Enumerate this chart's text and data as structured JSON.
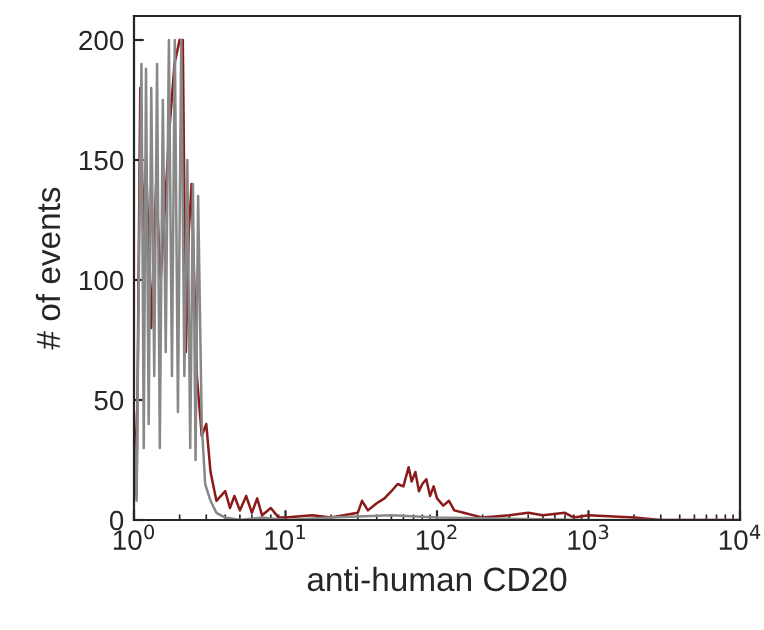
{
  "chart_data": {
    "type": "line",
    "xlabel": "anti-human CD20",
    "ylabel": "# of events",
    "log": "x",
    "xlim": [
      1,
      10000
    ],
    "ylim": [
      0,
      210
    ],
    "xticks": [
      {
        "value": 1,
        "label": "10$^{0}$"
      },
      {
        "value": 10,
        "label": "10$^{1}$"
      },
      {
        "value": 100,
        "label": "10$^{2}$"
      },
      {
        "value": 1000,
        "label": "10$^{3}$"
      },
      {
        "value": 10000,
        "label": "10$^{4}$"
      }
    ],
    "yticks": [
      0,
      50,
      100,
      150,
      200
    ],
    "grid": false,
    "legend": false,
    "marker": "none",
    "line_style": "solid",
    "series": [
      {
        "color": "#8b1a1a",
        "x": [
          1.0,
          1.04,
          1.1,
          1.15,
          1.2,
          1.3,
          1.4,
          1.5,
          1.6,
          1.7,
          1.85,
          2.0,
          2.1,
          2.2,
          2.3,
          2.4,
          2.6,
          2.8,
          3.0,
          3.2,
          3.5,
          4,
          4.3,
          4.6,
          5,
          5.5,
          6,
          6.5,
          7,
          8,
          9,
          10,
          15,
          20,
          30,
          32,
          35,
          40,
          45,
          50,
          55,
          60,
          65,
          68,
          72,
          76,
          80,
          85,
          90,
          95,
          100,
          110,
          120,
          130,
          150,
          200,
          300,
          400,
          500,
          700,
          800,
          1000,
          2000,
          3000,
          10000
        ],
        "values": [
          45,
          10,
          180,
          120,
          150,
          80,
          140,
          100,
          130,
          160,
          190,
          200,
          200,
          70,
          120,
          140,
          60,
          35,
          40,
          20,
          8,
          12,
          5,
          10,
          4,
          10,
          3,
          9,
          2,
          5,
          1,
          1,
          2,
          1,
          3,
          8,
          4,
          7,
          9,
          12,
          15,
          14,
          22,
          16,
          20,
          12,
          15,
          17,
          10,
          14,
          9,
          6,
          8,
          4,
          3,
          1,
          2,
          3,
          2,
          3,
          1,
          2,
          1,
          0,
          0
        ]
      },
      {
        "color": "#888888",
        "x": [
          1.0,
          1.04,
          1.08,
          1.12,
          1.16,
          1.2,
          1.25,
          1.3,
          1.36,
          1.42,
          1.48,
          1.55,
          1.62,
          1.7,
          1.78,
          1.86,
          1.95,
          2.05,
          2.15,
          2.25,
          2.35,
          2.45,
          2.55,
          2.65,
          2.8,
          2.95,
          3.2,
          3.5,
          4,
          5,
          7,
          10,
          20,
          50,
          100,
          1000,
          10000
        ],
        "values": [
          35,
          8,
          110,
          190,
          30,
          188,
          40,
          180,
          60,
          190,
          30,
          175,
          70,
          200,
          60,
          200,
          45,
          200,
          60,
          150,
          30,
          140,
          25,
          135,
          40,
          15,
          8,
          3,
          1,
          0,
          1,
          0,
          1,
          2,
          1,
          0,
          0
        ]
      }
    ]
  }
}
